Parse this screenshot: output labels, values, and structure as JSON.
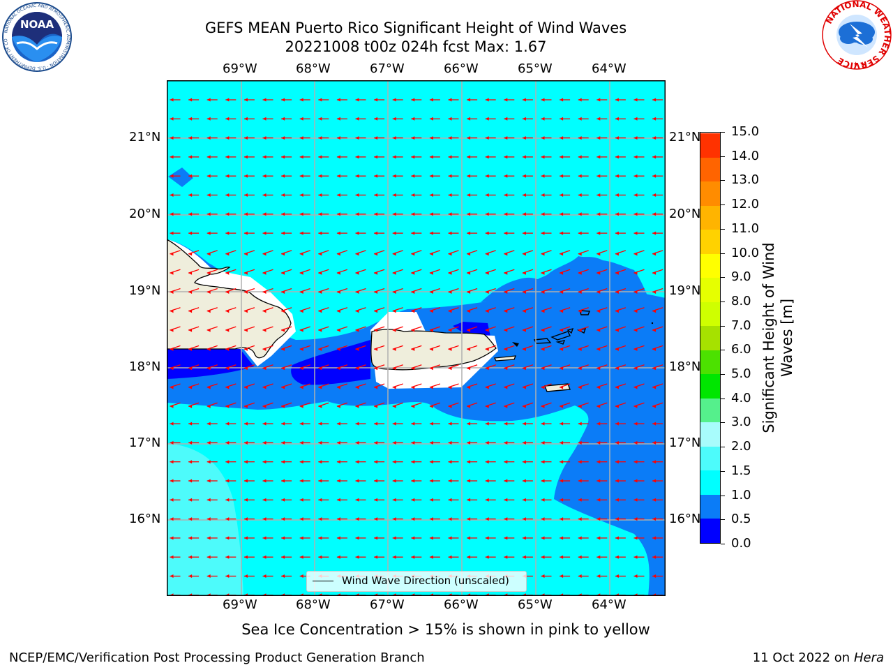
{
  "header": {
    "title_line1": "GEFS MEAN Puerto Rico Significant Height of Wind Waves",
    "title_line2": "20221008 t00z 024h fcst   Max: 1.67"
  },
  "logos": {
    "noaa_text": "NOAA",
    "noaa_ring_text": "NATIONAL OCEANIC AND ATMOSPHERIC ADMINISTRATION · U.S. DEPARTMENT OF COMMERCE",
    "nws_ring_text": "NATIONAL WEATHER SERVICE"
  },
  "map": {
    "lon_labels": [
      "69°W",
      "68°W",
      "67°W",
      "66°W",
      "65°W",
      "64°W"
    ],
    "lat_labels": [
      "21°N",
      "20°N",
      "19°N",
      "18°N",
      "17°N",
      "16°N"
    ],
    "legend_label": "Wind Wave Direction (unscaled)",
    "wind_direction": "from east (arrows point west)",
    "colors": {
      "land": "#efeedc",
      "band_0_05": "#0000ff",
      "band_05_1": "#0b7cf7",
      "band_1_15": "#00ffff",
      "band_15_2": "#4dfbfb",
      "arrow": "#ff0000"
    }
  },
  "colorbar": {
    "label": "Significant Height of Wind Waves [m]",
    "ticks": [
      "0.0",
      "0.5",
      "1.0",
      "1.5",
      "2.0",
      "3.0",
      "4.0",
      "5.0",
      "6.0",
      "7.0",
      "8.0",
      "9.0",
      "10.0",
      "11.0",
      "12.0",
      "13.0",
      "14.0",
      "15.0"
    ],
    "colors": [
      "#0000ff",
      "#0b7cf7",
      "#00ffff",
      "#4dfbfb",
      "#a8fcfc",
      "#55f08c",
      "#00e600",
      "#4ce100",
      "#a6e100",
      "#cfff00",
      "#e6ff00",
      "#ffff00",
      "#ffd200",
      "#ffb400",
      "#ff8c00",
      "#ff6400",
      "#ff3200",
      "#ff0000"
    ]
  },
  "notes": {
    "sea_ice": "Sea Ice Concentration > 15% is shown in pink to yellow"
  },
  "footer": {
    "left": "NCEP/EMC/Verification Post Processing Product Generation Branch",
    "date": "11 Oct 2022 on ",
    "machine": "Hera"
  }
}
